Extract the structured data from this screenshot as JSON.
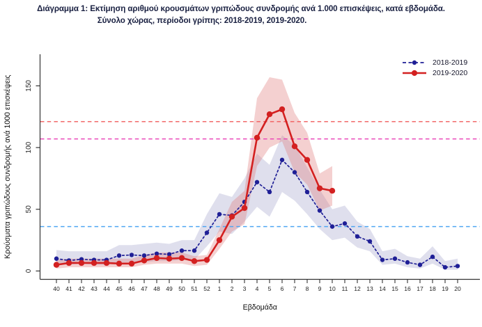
{
  "title": {
    "line1": "Διάγραμμα 1: Εκτίμηση αριθμού κρουσμάτων γριπώδους συνδρομής ανά 1.000 επισκέψεις, κατά εβδομάδα.",
    "line2": "Σύνολο χώρας, περίοδοι γρίπης:  2018-2019, 2019-2020."
  },
  "legend": {
    "items": [
      {
        "label": "2018-2019"
      },
      {
        "label": "2019-2020"
      }
    ]
  },
  "chart_data": {
    "type": "line",
    "title": "Εκτίμηση αριθμού κρουσμάτων γριπώδους συνδρομής ανά 1.000 επισκέψεις, κατά εβδομάδα",
    "xlabel": "Εβδομάδα",
    "ylabel": "Κρούσματα γριπώδους συνδρομής ανά 1000 επισκέψεις",
    "categories": [
      "40",
      "41",
      "42",
      "43",
      "44",
      "45",
      "46",
      "47",
      "48",
      "49",
      "50",
      "51",
      "52",
      "1",
      "2",
      "3",
      "4",
      "5",
      "6",
      "7",
      "8",
      "9",
      "10",
      "11",
      "12",
      "13",
      "14",
      "15",
      "16",
      "17",
      "18",
      "19",
      "20"
    ],
    "y_ticks": [
      0,
      50,
      100,
      150
    ],
    "ylim": [
      0,
      178
    ],
    "grid": false,
    "legend_position": "top-right",
    "thresholds": [
      {
        "name": "threshold-high",
        "value": 121,
        "color": "#f15b5b"
      },
      {
        "name": "threshold-medium",
        "value": 107,
        "color": "#e93eb5"
      },
      {
        "name": "threshold-baseline",
        "value": 36,
        "color": "#4fa6f2"
      }
    ],
    "series": [
      {
        "name": "2018-2019",
        "style": "dashed",
        "color": "#1f1f96",
        "band_color": "#8d8dc0",
        "band_opacity": 0.28,
        "values": [
          10,
          8.5,
          9.5,
          9,
          9,
          12.5,
          13,
          12.5,
          14,
          13.5,
          16.5,
          16.5,
          31,
          46,
          45,
          56,
          72,
          64,
          90,
          80,
          64,
          49,
          36,
          38.5,
          28,
          24,
          9,
          10,
          7,
          5,
          11.5,
          3,
          4
        ],
        "band_lower": [
          6,
          5,
          6,
          5,
          5,
          7,
          7,
          7,
          8,
          8,
          9,
          9,
          20,
          32,
          30,
          40,
          52,
          44,
          64,
          57,
          46,
          34,
          25,
          27,
          19,
          16,
          5,
          6,
          3,
          2,
          6,
          1,
          1
        ],
        "band_upper": [
          17,
          16,
          16,
          16,
          16,
          21,
          21,
          22,
          23,
          22,
          25,
          25,
          46,
          63,
          60,
          75,
          95,
          86,
          110,
          102,
          84,
          66,
          50,
          53,
          40,
          34,
          16,
          18,
          12,
          10,
          20,
          8,
          10
        ]
      },
      {
        "name": "2019-2020",
        "style": "solid",
        "color": "#d32020",
        "band_color": "#e07d7d",
        "band_opacity": 0.36,
        "values": [
          5,
          6.5,
          6.5,
          6.5,
          6.5,
          6,
          6,
          8.5,
          10.5,
          10,
          10.5,
          8,
          9,
          25,
          44,
          51,
          108,
          127,
          131,
          101,
          90,
          67,
          65,
          null,
          null,
          null,
          null,
          null,
          null,
          null,
          null,
          null,
          null
        ],
        "band_lower": [
          2,
          3,
          3,
          3,
          3,
          3,
          3,
          5,
          6,
          6,
          6,
          4,
          5,
          18,
          32,
          38,
          85,
          100,
          105,
          80,
          70,
          49,
          53,
          null,
          null,
          null,
          null,
          null,
          null,
          null,
          null,
          null,
          null
        ],
        "band_upper": [
          9,
          10,
          10,
          10,
          10,
          10,
          10,
          13,
          15,
          15,
          15,
          12,
          13,
          34,
          56,
          65,
          140,
          157,
          155,
          128,
          112,
          79,
          85,
          null,
          null,
          null,
          null,
          null,
          null,
          null,
          null,
          null,
          null
        ]
      }
    ]
  }
}
